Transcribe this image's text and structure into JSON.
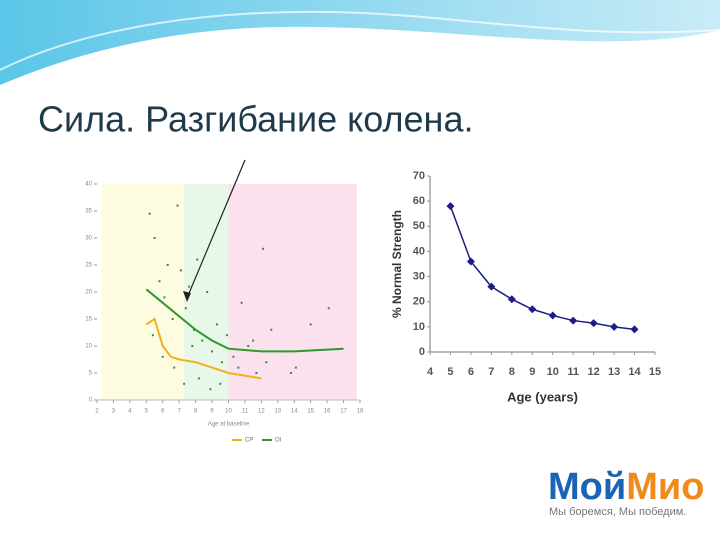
{
  "title": "Сила. Разгибание колена.",
  "chart_data": [
    {
      "type": "line",
      "x_label": "Age at baseline",
      "xlim": [
        2,
        18
      ],
      "xticks": [
        2,
        3,
        4,
        5,
        6,
        7,
        8,
        9,
        10,
        11,
        12,
        13,
        14,
        15,
        16,
        17,
        18
      ],
      "ylim": [
        0,
        40
      ],
      "yticks": [
        0,
        5,
        10,
        15,
        20,
        25,
        30,
        35,
        40
      ],
      "bands": [
        {
          "from": 2.3,
          "to": 7.3,
          "color": "#fdfbe0"
        },
        {
          "from": 7.3,
          "to": 10,
          "color": "#e8f8e8"
        },
        {
          "from": 10,
          "to": 17.8,
          "color": "#fbe1ee"
        }
      ],
      "series": [
        {
          "name": "CP",
          "color": "#f0b020",
          "x": [
            5,
            5.5,
            6,
            6.5,
            7,
            8,
            9,
            10,
            12
          ],
          "values": [
            14,
            15,
            10,
            8,
            7.5,
            7,
            6,
            5,
            4
          ]
        },
        {
          "name": "OI",
          "color": "#2e9a2e",
          "x": [
            5,
            6,
            7,
            8,
            9,
            10,
            12,
            14,
            17
          ],
          "values": [
            20.5,
            18,
            15.5,
            13,
            11,
            9.5,
            9,
            9,
            9.5
          ]
        }
      ],
      "points": {
        "color": "#3a8a3a",
        "x": [
          5.2,
          5.5,
          5.8,
          6.1,
          6.3,
          6.6,
          6.9,
          7.1,
          7.4,
          7.6,
          7.9,
          8.1,
          8.4,
          8.7,
          9.0,
          9.3,
          9.6,
          9.9,
          10.3,
          10.8,
          11.2,
          11.7,
          12.1,
          12.6,
          13.2,
          14.1,
          15.0,
          16.1,
          5.4,
          6.0,
          6.7,
          7.3,
          8.2,
          8.9,
          9.5,
          10.6,
          11.5,
          12.3,
          13.8,
          7.8
        ],
        "y": [
          34.5,
          30,
          22,
          19,
          25,
          15,
          36,
          24,
          17,
          21,
          13,
          26,
          11,
          20,
          9,
          14,
          7,
          12,
          8,
          18,
          10,
          5,
          28,
          13,
          9,
          6,
          14,
          17,
          12,
          8,
          6,
          3,
          4,
          2,
          3,
          6,
          11,
          7,
          5,
          10
        ]
      }
    },
    {
      "type": "line",
      "x_label": "Age (years)",
      "y_label": "% Normal Strength",
      "xlim": [
        4,
        15
      ],
      "xticks": [
        4,
        5,
        6,
        7,
        8,
        9,
        10,
        11,
        12,
        13,
        14,
        15
      ],
      "ylim": [
        0,
        70
      ],
      "yticks": [
        0,
        10,
        20,
        30,
        40,
        50,
        60,
        70
      ],
      "series": [
        {
          "color": "#1c1c8c",
          "x": [
            5,
            6,
            7,
            8,
            9,
            10,
            11,
            12,
            13,
            14
          ],
          "values": [
            58,
            36,
            26,
            21,
            17,
            14.5,
            12.5,
            11.5,
            10,
            9
          ]
        }
      ]
    }
  ],
  "logo": {
    "part1": "Мой",
    "part2": "Мио",
    "slogan": "Мы боремся, Мы победим."
  }
}
